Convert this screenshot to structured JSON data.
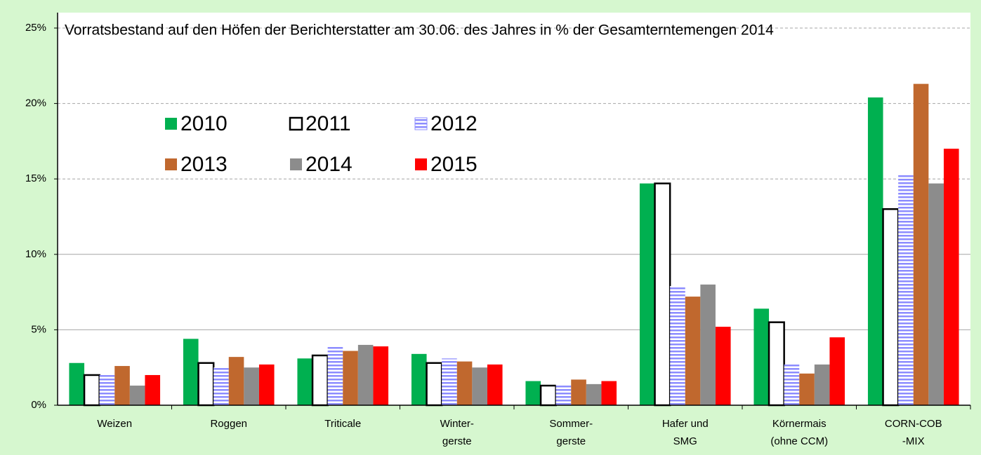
{
  "chart_data": {
    "type": "bar",
    "title": "Vorratsbestand auf den Höfen der Berichterstatter am 30.06. des Jahres in % der Gesamterntemengen 2014",
    "categories": [
      [
        "Weizen"
      ],
      [
        "Roggen"
      ],
      [
        "Triticale"
      ],
      [
        "Winter-",
        "gerste"
      ],
      [
        "Sommer-",
        "gerste"
      ],
      [
        "Hafer und",
        "SMG"
      ],
      [
        "Körnermais",
        "(ohne CCM)"
      ],
      [
        "CORN-COB",
        "-MIX"
      ]
    ],
    "series": [
      {
        "name": "2010",
        "color": "#00b050",
        "values": [
          2.8,
          4.4,
          3.1,
          3.4,
          1.6,
          14.7,
          6.4,
          20.4
        ]
      },
      {
        "name": "2011",
        "color": "#ffffff",
        "edgecolor": "#000000",
        "values": [
          2.0,
          2.8,
          3.3,
          2.8,
          1.3,
          14.7,
          5.5,
          13.0
        ]
      },
      {
        "name": "2012",
        "color": "#8c8cff",
        "pattern": "horizontal-stripes",
        "values": [
          2.0,
          2.5,
          3.9,
          3.1,
          1.4,
          7.9,
          2.7,
          15.3
        ]
      },
      {
        "name": "2013",
        "color": "#c0682e",
        "values": [
          2.6,
          3.2,
          3.6,
          2.9,
          1.7,
          7.2,
          2.1,
          21.3
        ]
      },
      {
        "name": "2014",
        "color": "#8c8c8c",
        "values": [
          1.3,
          2.5,
          4.0,
          2.5,
          1.4,
          8.0,
          2.7,
          14.7
        ]
      },
      {
        "name": "2015",
        "color": "#ff0000",
        "values": [
          2.0,
          2.7,
          3.9,
          2.7,
          1.6,
          5.2,
          4.5,
          17.0
        ]
      }
    ],
    "ylim": [
      0,
      25
    ],
    "yticks": [
      {
        "value": 0,
        "label": "0%"
      },
      {
        "value": 5,
        "label": "5%"
      },
      {
        "value": 10,
        "label": "10%"
      },
      {
        "value": 15,
        "label": "15%"
      },
      {
        "value": 20,
        "label": "20%"
      },
      {
        "value": 25,
        "label": "25%"
      }
    ],
    "grid": true,
    "legend": "upper left"
  }
}
